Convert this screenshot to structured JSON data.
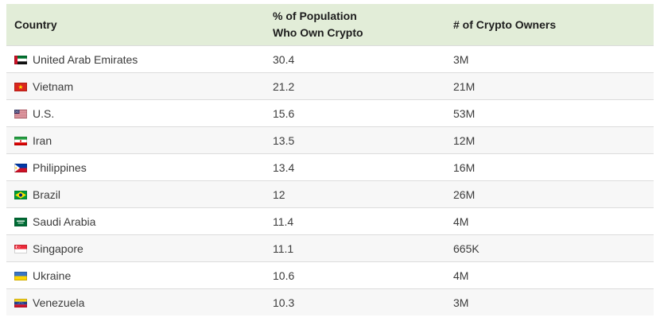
{
  "table": {
    "columns": {
      "country": {
        "label": "Country"
      },
      "pct": {
        "label_line1": "% of Population",
        "label_line2": "Who Own Crypto"
      },
      "owners": {
        "label": "# of Crypto Owners"
      }
    },
    "rows": [
      {
        "country": "United Arab Emirates",
        "flag_icon": "uae-flag-icon",
        "pct": "30.4",
        "owners": "3M"
      },
      {
        "country": "Vietnam",
        "flag_icon": "vietnam-flag-icon",
        "pct": "21.2",
        "owners": "21M"
      },
      {
        "country": "U.S.",
        "flag_icon": "us-flag-icon",
        "pct": "15.6",
        "owners": "53M"
      },
      {
        "country": "Iran",
        "flag_icon": "iran-flag-icon",
        "pct": "13.5",
        "owners": "12M"
      },
      {
        "country": "Philippines",
        "flag_icon": "philippines-flag-icon",
        "pct": "13.4",
        "owners": "16M"
      },
      {
        "country": "Brazil",
        "flag_icon": "brazil-flag-icon",
        "pct": "12",
        "owners": "26M"
      },
      {
        "country": "Saudi Arabia",
        "flag_icon": "saudi-arabia-flag-icon",
        "pct": "11.4",
        "owners": "4M"
      },
      {
        "country": "Singapore",
        "flag_icon": "singapore-flag-icon",
        "pct": "11.1",
        "owners": "665K"
      },
      {
        "country": "Ukraine",
        "flag_icon": "ukraine-flag-icon",
        "pct": "10.6",
        "owners": "4M"
      },
      {
        "country": "Venezuela",
        "flag_icon": "venezuela-flag-icon",
        "pct": "10.3",
        "owners": "3M"
      }
    ]
  },
  "colors": {
    "header_bg": "#e2edd8",
    "row_alt_bg": "#f7f7f7",
    "row_border": "#dcdcdc",
    "header_text": "#1d1d1d",
    "body_text": "#3b3b3b"
  }
}
